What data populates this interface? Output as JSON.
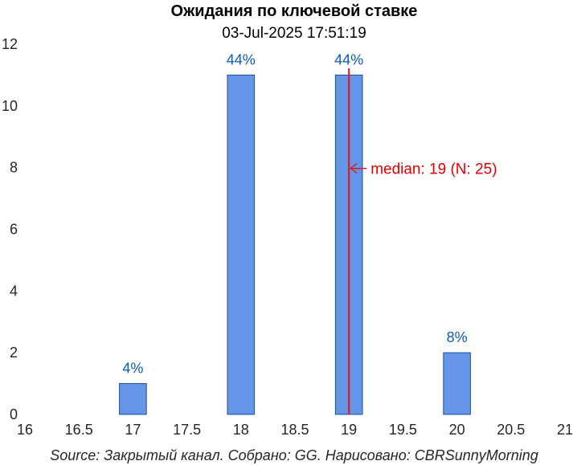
{
  "chart_data": {
    "type": "bar",
    "title": "Ожидания по ключевой ставке",
    "subtitle": "03-Jul-2025 17:51:19",
    "x": [
      17,
      18,
      19,
      20
    ],
    "values": [
      1,
      11,
      11,
      2
    ],
    "value_labels": [
      "4%",
      "44%",
      "44%",
      "8%"
    ],
    "xlim": [
      16,
      21
    ],
    "ylim": [
      0,
      12
    ],
    "x_ticks": [
      "16",
      "16.5",
      "17",
      "17.5",
      "18",
      "18.5",
      "19",
      "19.5",
      "20",
      "20.5",
      "21"
    ],
    "y_ticks": [
      "0",
      "2",
      "4",
      "6",
      "8",
      "10",
      "12"
    ],
    "grid": false,
    "median": {
      "value": 19,
      "label": "median: 19 (N: 25)",
      "color": "#e0141e"
    },
    "bar_color": "#6495e6",
    "bar_edge_color": "#1a4f9c",
    "label_color": "#0a5ab4",
    "source": "Source: Закрытый канал. Собрано: GG. Нарисовано: CBRSunnyMorning"
  }
}
